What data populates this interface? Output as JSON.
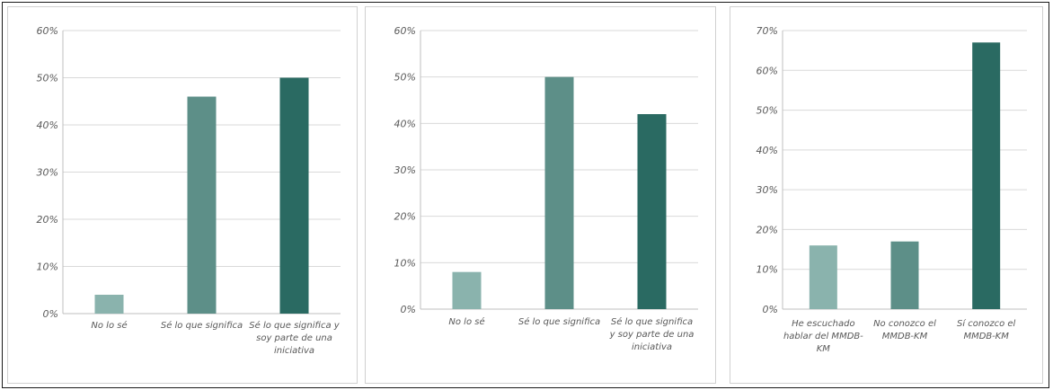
{
  "chart_data": [
    {
      "type": "bar",
      "categories": [
        [
          "No lo sé"
        ],
        [
          "Sé lo que significa"
        ],
        [
          "Sé lo que significa y",
          "soy parte de una",
          "iniciativa"
        ]
      ],
      "values": [
        4,
        46,
        50
      ],
      "ylim": [
        0,
        60
      ],
      "yticks": [
        "0%",
        "10%",
        "20%",
        "30%",
        "40%",
        "50%",
        "60%"
      ],
      "colors": [
        "#8ab3ad",
        "#5d8f88",
        "#2a6a62"
      ],
      "grid": true
    },
    {
      "type": "bar",
      "categories": [
        [
          "No lo sé"
        ],
        [
          "Sé lo que significa"
        ],
        [
          "Sé lo que significa",
          "y soy parte de una",
          "iniciativa"
        ]
      ],
      "values": [
        8,
        50,
        42
      ],
      "ylim": [
        0,
        60
      ],
      "yticks": [
        "0%",
        "10%",
        "20%",
        "30%",
        "40%",
        "50%",
        "60%"
      ],
      "colors": [
        "#8ab3ad",
        "#5d8f88",
        "#2a6a62"
      ],
      "grid": true
    },
    {
      "type": "bar",
      "categories": [
        [
          "He escuchado",
          "hablar del MMDB-",
          "KM"
        ],
        [
          "No conozco el",
          "MMDB-KM"
        ],
        [
          "Sí conozco el",
          "MMDB-KM"
        ]
      ],
      "values": [
        16,
        17,
        67
      ],
      "ylim": [
        0,
        70
      ],
      "yticks": [
        "0%",
        "10%",
        "20%",
        "30%",
        "40%",
        "50%",
        "60%",
        "70%"
      ],
      "colors": [
        "#8ab3ad",
        "#5d8f88",
        "#2a6a62"
      ],
      "grid": true
    }
  ]
}
